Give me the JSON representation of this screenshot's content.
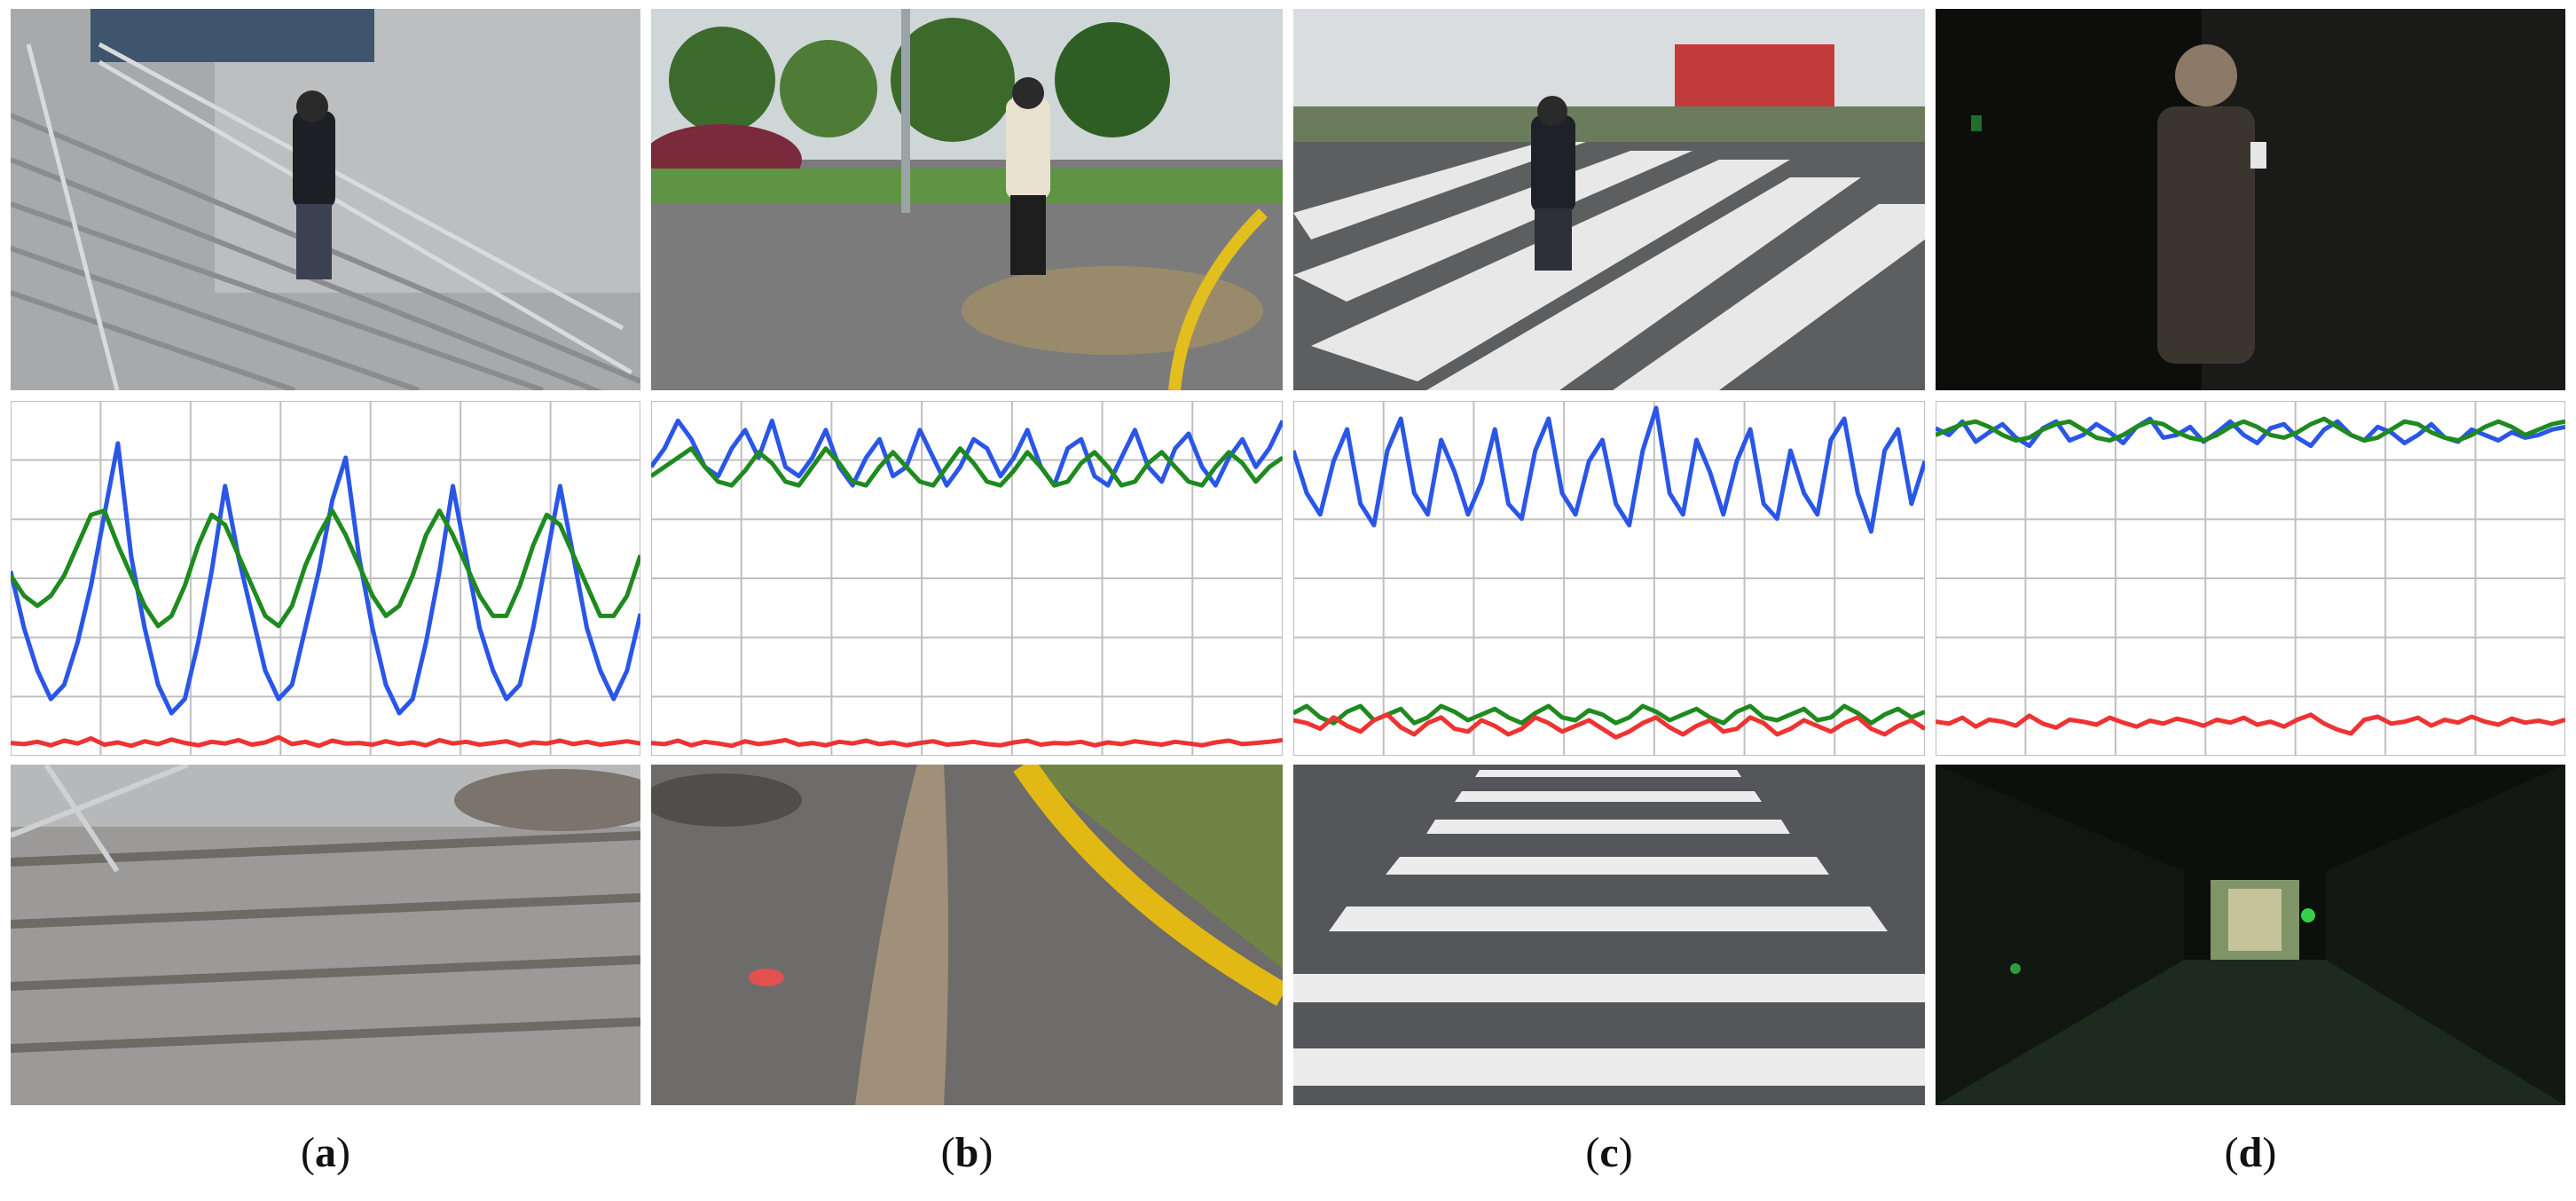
{
  "panels": [
    {
      "label_open": "(",
      "letter": "a",
      "label_close": ")"
    },
    {
      "label_open": "(",
      "letter": "b",
      "label_close": ")"
    },
    {
      "label_open": "(",
      "letter": "c",
      "label_close": ")"
    },
    {
      "label_open": "(",
      "letter": "d",
      "label_close": ")"
    }
  ],
  "colors": {
    "blue": "#2a56e8",
    "green": "#1f8a1f",
    "red": "#ee3333",
    "grid": "#bfbfbf"
  },
  "chart_data": [
    {
      "type": "line",
      "panel": "a",
      "grid": true,
      "series": [
        {
          "color": "blue",
          "values": [
            0.55,
            0.35,
            0.2,
            0.1,
            0.15,
            0.3,
            0.5,
            0.75,
            1.0,
            0.6,
            0.35,
            0.15,
            0.05,
            0.1,
            0.3,
            0.55,
            0.85,
            0.6,
            0.4,
            0.2,
            0.1,
            0.15,
            0.35,
            0.55,
            0.8,
            0.95,
            0.6,
            0.35,
            0.15,
            0.05,
            0.1,
            0.3,
            0.55,
            0.85,
            0.6,
            0.35,
            0.2,
            0.1,
            0.15,
            0.35,
            0.6,
            0.85,
            0.6,
            0.35,
            0.2,
            0.1,
            0.2,
            0.4
          ]
        },
        {
          "color": "green",
          "values": [
            0.4,
            0.3,
            0.25,
            0.3,
            0.4,
            0.55,
            0.7,
            0.72,
            0.55,
            0.4,
            0.25,
            0.15,
            0.2,
            0.35,
            0.55,
            0.7,
            0.65,
            0.5,
            0.35,
            0.2,
            0.15,
            0.25,
            0.45,
            0.6,
            0.72,
            0.6,
            0.45,
            0.3,
            0.2,
            0.25,
            0.4,
            0.6,
            0.72,
            0.6,
            0.45,
            0.3,
            0.2,
            0.2,
            0.35,
            0.55,
            0.7,
            0.65,
            0.5,
            0.35,
            0.2,
            0.2,
            0.3,
            0.5
          ]
        },
        {
          "color": "red",
          "values": [
            0.1,
            0.08,
            0.12,
            0.06,
            0.14,
            0.09,
            0.18,
            0.07,
            0.11,
            0.05,
            0.13,
            0.08,
            0.16,
            0.1,
            0.06,
            0.12,
            0.09,
            0.15,
            0.07,
            0.11,
            0.2,
            0.08,
            0.12,
            0.05,
            0.14,
            0.09,
            0.1,
            0.07,
            0.13,
            0.08,
            0.11,
            0.06,
            0.15,
            0.09,
            0.12,
            0.07,
            0.1,
            0.13,
            0.06,
            0.11,
            0.09,
            0.14,
            0.08,
            0.12,
            0.07,
            0.1,
            0.13,
            0.09
          ]
        }
      ]
    },
    {
      "type": "line",
      "panel": "b",
      "grid": true,
      "series": [
        {
          "color": "blue",
          "values": [
            0.7,
            0.8,
            0.95,
            0.85,
            0.7,
            0.65,
            0.8,
            0.9,
            0.75,
            0.95,
            0.7,
            0.65,
            0.75,
            0.9,
            0.7,
            0.6,
            0.75,
            0.85,
            0.65,
            0.7,
            0.9,
            0.75,
            0.6,
            0.7,
            0.85,
            0.8,
            0.65,
            0.75,
            0.9,
            0.7,
            0.6,
            0.8,
            0.85,
            0.65,
            0.6,
            0.75,
            0.9,
            0.7,
            0.62,
            0.8,
            0.88,
            0.7,
            0.6,
            0.75,
            0.85,
            0.7,
            0.8,
            0.95
          ]
        },
        {
          "color": "green",
          "values": [
            0.65,
            0.7,
            0.75,
            0.8,
            0.7,
            0.62,
            0.6,
            0.68,
            0.78,
            0.72,
            0.62,
            0.6,
            0.7,
            0.8,
            0.72,
            0.62,
            0.6,
            0.7,
            0.78,
            0.7,
            0.62,
            0.6,
            0.7,
            0.8,
            0.72,
            0.62,
            0.6,
            0.68,
            0.78,
            0.7,
            0.6,
            0.62,
            0.72,
            0.78,
            0.7,
            0.6,
            0.62,
            0.72,
            0.78,
            0.7,
            0.62,
            0.6,
            0.7,
            0.78,
            0.72,
            0.62,
            0.7,
            0.75
          ]
        },
        {
          "color": "red",
          "values": [
            0.1,
            0.08,
            0.14,
            0.06,
            0.12,
            0.09,
            0.05,
            0.13,
            0.08,
            0.11,
            0.15,
            0.07,
            0.1,
            0.06,
            0.12,
            0.09,
            0.14,
            0.08,
            0.11,
            0.06,
            0.1,
            0.13,
            0.07,
            0.09,
            0.12,
            0.08,
            0.06,
            0.11,
            0.14,
            0.07,
            0.1,
            0.09,
            0.12,
            0.06,
            0.11,
            0.08,
            0.13,
            0.1,
            0.07,
            0.12,
            0.09,
            0.06,
            0.11,
            0.14,
            0.08,
            0.1,
            0.12,
            0.15
          ]
        }
      ]
    },
    {
      "type": "line",
      "panel": "c",
      "grid": true,
      "series": [
        {
          "color": "blue",
          "values": [
            0.8,
            0.6,
            0.5,
            0.75,
            0.9,
            0.55,
            0.45,
            0.8,
            0.95,
            0.6,
            0.5,
            0.85,
            0.7,
            0.5,
            0.65,
            0.9,
            0.55,
            0.48,
            0.8,
            0.95,
            0.6,
            0.5,
            0.75,
            0.85,
            0.55,
            0.45,
            0.8,
            1.0,
            0.6,
            0.5,
            0.85,
            0.7,
            0.5,
            0.75,
            0.9,
            0.55,
            0.48,
            0.8,
            0.6,
            0.5,
            0.85,
            0.95,
            0.6,
            0.42,
            0.8,
            0.9,
            0.55,
            0.75
          ]
        },
        {
          "color": "green",
          "values": [
            0.25,
            0.3,
            0.22,
            0.18,
            0.26,
            0.3,
            0.2,
            0.24,
            0.28,
            0.18,
            0.22,
            0.3,
            0.26,
            0.2,
            0.24,
            0.28,
            0.22,
            0.18,
            0.25,
            0.3,
            0.22,
            0.2,
            0.27,
            0.24,
            0.18,
            0.22,
            0.3,
            0.26,
            0.2,
            0.24,
            0.28,
            0.22,
            0.18,
            0.26,
            0.3,
            0.22,
            0.2,
            0.24,
            0.28,
            0.2,
            0.22,
            0.3,
            0.25,
            0.18,
            0.24,
            0.28,
            0.22,
            0.26
          ]
        },
        {
          "color": "red",
          "values": [
            0.2,
            0.18,
            0.14,
            0.22,
            0.16,
            0.12,
            0.2,
            0.24,
            0.15,
            0.1,
            0.18,
            0.22,
            0.14,
            0.12,
            0.2,
            0.16,
            0.1,
            0.14,
            0.22,
            0.18,
            0.12,
            0.16,
            0.2,
            0.14,
            0.08,
            0.12,
            0.18,
            0.22,
            0.15,
            0.1,
            0.16,
            0.2,
            0.12,
            0.14,
            0.22,
            0.18,
            0.1,
            0.14,
            0.2,
            0.16,
            0.12,
            0.18,
            0.22,
            0.14,
            0.1,
            0.16,
            0.2,
            0.14
          ]
        }
      ]
    },
    {
      "type": "line",
      "panel": "d",
      "grid": true,
      "series": [
        {
          "color": "blue",
          "values": [
            0.85,
            0.8,
            0.9,
            0.75,
            0.82,
            0.88,
            0.78,
            0.72,
            0.85,
            0.9,
            0.76,
            0.8,
            0.88,
            0.82,
            0.74,
            0.86,
            0.92,
            0.78,
            0.8,
            0.86,
            0.75,
            0.82,
            0.9,
            0.8,
            0.74,
            0.85,
            0.88,
            0.78,
            0.72,
            0.84,
            0.9,
            0.8,
            0.76,
            0.86,
            0.82,
            0.74,
            0.8,
            0.88,
            0.78,
            0.75,
            0.84,
            0.8,
            0.76,
            0.82,
            0.78,
            0.8,
            0.84,
            0.86
          ]
        },
        {
          "color": "green",
          "values": [
            0.8,
            0.84,
            0.88,
            0.9,
            0.86,
            0.8,
            0.76,
            0.78,
            0.84,
            0.88,
            0.9,
            0.84,
            0.78,
            0.76,
            0.8,
            0.86,
            0.9,
            0.88,
            0.82,
            0.78,
            0.76,
            0.8,
            0.86,
            0.9,
            0.86,
            0.8,
            0.78,
            0.82,
            0.88,
            0.92,
            0.86,
            0.8,
            0.76,
            0.78,
            0.84,
            0.9,
            0.88,
            0.82,
            0.78,
            0.76,
            0.8,
            0.86,
            0.9,
            0.86,
            0.8,
            0.84,
            0.88,
            0.9
          ]
        },
        {
          "color": "red",
          "values": [
            0.2,
            0.18,
            0.24,
            0.15,
            0.22,
            0.2,
            0.16,
            0.26,
            0.18,
            0.14,
            0.22,
            0.2,
            0.17,
            0.24,
            0.19,
            0.15,
            0.21,
            0.18,
            0.23,
            0.2,
            0.16,
            0.22,
            0.19,
            0.24,
            0.17,
            0.2,
            0.15,
            0.22,
            0.27,
            0.18,
            0.12,
            0.08,
            0.22,
            0.25,
            0.18,
            0.2,
            0.24,
            0.16,
            0.22,
            0.19,
            0.25,
            0.2,
            0.17,
            0.23,
            0.19,
            0.21,
            0.18,
            0.22
          ]
        }
      ]
    }
  ]
}
